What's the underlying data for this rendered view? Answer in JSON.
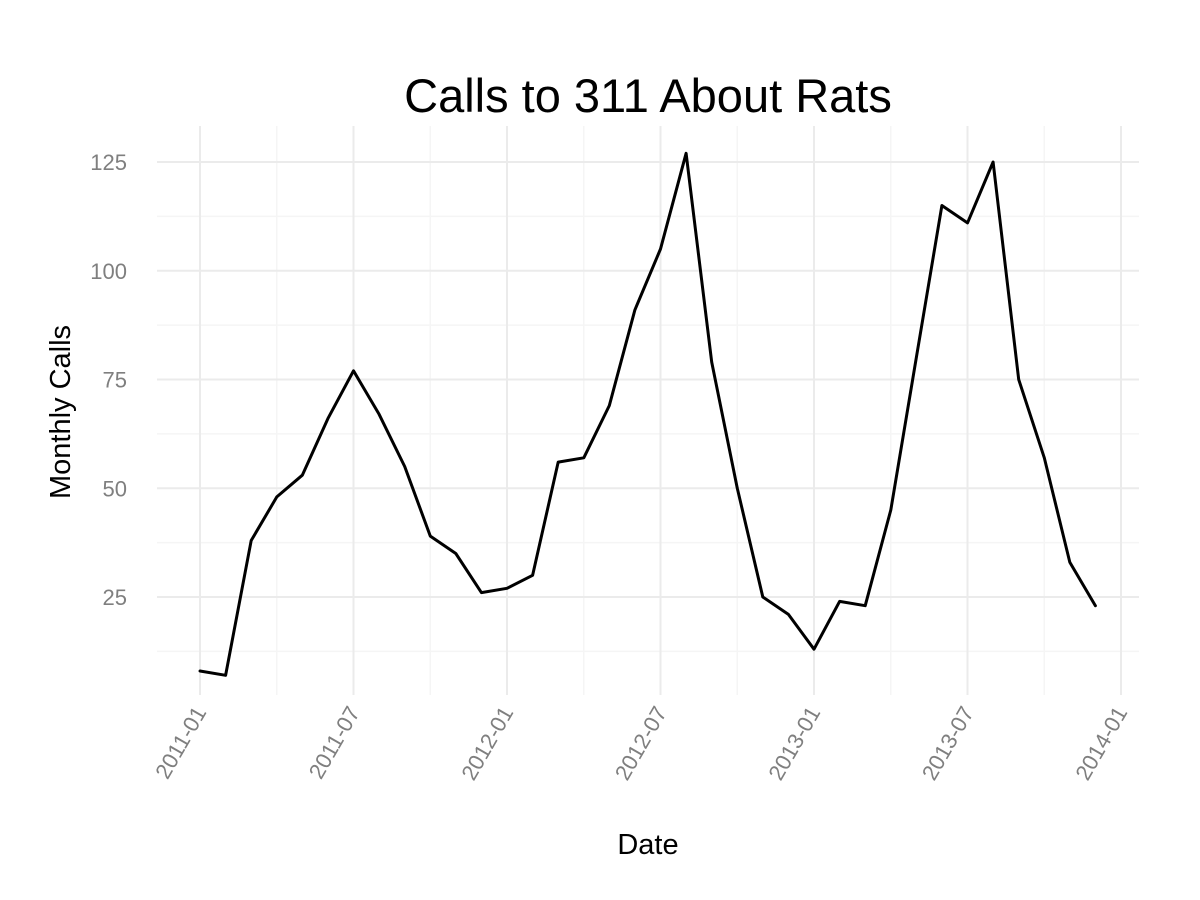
{
  "chart_data": {
    "type": "line",
    "title": "Calls to 311 About Rats",
    "xlabel": "Date",
    "ylabel": "Monthly Calls",
    "grid": true,
    "legend": "none",
    "x_ticks": [
      "2011-01",
      "2011-07",
      "2012-01",
      "2012-07",
      "2013-01",
      "2013-07",
      "2014-01"
    ],
    "y_ticks": [
      25,
      50,
      75,
      100,
      125
    ],
    "series": [
      {
        "color": "#000000",
        "x": [
          "2011-01",
          "2011-02",
          "2011-03",
          "2011-04",
          "2011-05",
          "2011-06",
          "2011-07",
          "2011-08",
          "2011-09",
          "2011-10",
          "2011-11",
          "2011-12",
          "2012-01",
          "2012-02",
          "2012-03",
          "2012-04",
          "2012-05",
          "2012-06",
          "2012-07",
          "2012-08",
          "2012-09",
          "2012-10",
          "2012-11",
          "2012-12",
          "2013-01",
          "2013-02",
          "2013-03",
          "2013-04",
          "2013-05",
          "2013-06",
          "2013-07",
          "2013-08",
          "2013-09",
          "2013-10",
          "2013-11",
          "2013-12"
        ],
        "values": [
          8,
          7,
          38,
          48,
          53,
          66,
          77,
          67,
          55,
          39,
          35,
          26,
          27,
          30,
          56,
          57,
          69,
          91,
          105,
          127,
          79,
          50,
          25,
          21,
          13,
          24,
          23,
          45,
          80,
          115,
          111,
          125,
          75,
          57,
          33,
          23
        ]
      }
    ]
  }
}
